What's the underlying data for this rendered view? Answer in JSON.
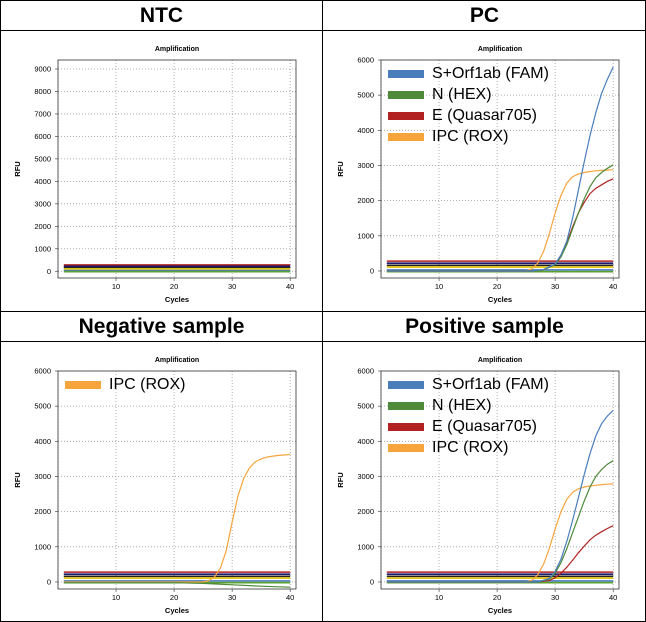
{
  "panels": [
    {
      "title": "NTC"
    },
    {
      "title": "PC"
    },
    {
      "title": "Negative sample"
    },
    {
      "title": "Positive sample"
    }
  ],
  "colors": {
    "fam": "#4a7ebb",
    "hex": "#4e8a3a",
    "q705": "#b22222",
    "rox": "#f5a53c",
    "baseline_black": "#222222",
    "baseline_navy": "#1a1a6e",
    "baseline_yellow": "#e0c000",
    "baseline_green": "#5aa02c",
    "grid": "#999999"
  },
  "chart_data": [
    {
      "type": "line",
      "title": "Amplification",
      "xlabel": "Cycles",
      "ylabel": "RFU",
      "xlim": [
        0,
        41
      ],
      "ylim": [
        -300,
        9400
      ],
      "xticks": [
        0,
        10,
        20,
        30,
        40
      ],
      "yticks": [
        0,
        1000,
        2000,
        3000,
        4000,
        5000,
        6000,
        7000,
        8000,
        9000
      ],
      "grid": true,
      "legend": [],
      "baselines": [
        {
          "color": "q705",
          "value": 280
        },
        {
          "color": "baseline_navy",
          "value": 220
        },
        {
          "color": "baseline_black",
          "value": 160
        },
        {
          "color": "baseline_yellow",
          "value": 110
        },
        {
          "color": "fam",
          "value": 30
        },
        {
          "color": "baseline_green",
          "value": -20
        }
      ],
      "series": []
    },
    {
      "type": "line",
      "title": "Amplification",
      "xlabel": "Cycles",
      "ylabel": "RFU",
      "xlim": [
        0,
        41
      ],
      "ylim": [
        -200,
        6000
      ],
      "xticks": [
        0,
        10,
        20,
        30,
        40
      ],
      "yticks": [
        0,
        1000,
        2000,
        3000,
        4000,
        5000,
        6000
      ],
      "grid": true,
      "legend": [
        {
          "name": "S+Orf1ab (FAM)",
          "color": "fam"
        },
        {
          "name": "N (HEX)",
          "color": "hex"
        },
        {
          "name": "E (Quasar705)",
          "color": "q705"
        },
        {
          "name": "IPC (ROX)",
          "color": "rox"
        }
      ],
      "baselines": [
        {
          "color": "q705",
          "value": 280
        },
        {
          "color": "baseline_navy",
          "value": 220
        },
        {
          "color": "baseline_black",
          "value": 160
        },
        {
          "color": "baseline_yellow",
          "value": 110
        },
        {
          "color": "fam",
          "value": 30
        },
        {
          "color": "baseline_green",
          "value": -20
        }
      ],
      "series": [
        {
          "color": "rox",
          "x": [
            25,
            26,
            27,
            28,
            29,
            30,
            31,
            32,
            33,
            34,
            35,
            36,
            37,
            38,
            39,
            40
          ],
          "y": [
            0,
            60,
            220,
            550,
            1050,
            1650,
            2150,
            2500,
            2680,
            2760,
            2800,
            2830,
            2850,
            2860,
            2870,
            2880
          ]
        },
        {
          "color": "q705",
          "x": [
            26,
            28,
            30,
            31,
            32,
            33,
            34,
            35,
            36,
            37,
            38,
            39,
            40
          ],
          "y": [
            0,
            30,
            200,
            450,
            800,
            1250,
            1650,
            1950,
            2200,
            2350,
            2450,
            2550,
            2620
          ]
        },
        {
          "color": "hex",
          "x": [
            26,
            28,
            30,
            31,
            32,
            33,
            34,
            35,
            36,
            37,
            38,
            39,
            40
          ],
          "y": [
            0,
            30,
            180,
            400,
            750,
            1200,
            1650,
            2050,
            2400,
            2650,
            2800,
            2920,
            3020
          ]
        },
        {
          "color": "fam",
          "x": [
            26,
            28,
            30,
            31,
            32,
            33,
            34,
            35,
            36,
            37,
            38,
            39,
            40
          ],
          "y": [
            0,
            40,
            200,
            450,
            850,
            1500,
            2300,
            3100,
            3850,
            4500,
            5050,
            5450,
            5800
          ]
        }
      ]
    },
    {
      "type": "line",
      "title": "Amplification",
      "xlabel": "Cycles",
      "ylabel": "RFU",
      "xlim": [
        0,
        41
      ],
      "ylim": [
        -200,
        6000
      ],
      "xticks": [
        0,
        10,
        20,
        30,
        40
      ],
      "yticks": [
        0,
        1000,
        2000,
        3000,
        4000,
        5000,
        6000
      ],
      "grid": true,
      "legend": [
        {
          "name": "IPC (ROX)",
          "color": "rox"
        }
      ],
      "baselines": [
        {
          "color": "q705",
          "value": 280
        },
        {
          "color": "baseline_navy",
          "value": 220
        },
        {
          "color": "baseline_black",
          "value": 160
        },
        {
          "color": "baseline_yellow",
          "value": 110
        },
        {
          "color": "fam",
          "value": 30
        },
        {
          "color": "baseline_green",
          "value": -20
        }
      ],
      "series": [
        {
          "color": "rox",
          "x": [
            25,
            26,
            27,
            28,
            29,
            30,
            31,
            32,
            33,
            34,
            35,
            36,
            37,
            38,
            39,
            40
          ],
          "y": [
            0,
            40,
            150,
            400,
            900,
            1700,
            2450,
            2950,
            3250,
            3420,
            3500,
            3550,
            3580,
            3600,
            3610,
            3630
          ]
        },
        {
          "color": "hex",
          "x": [
            20,
            25,
            30,
            35,
            40
          ],
          "y": [
            -20,
            -40,
            -80,
            -120,
            -150
          ]
        }
      ]
    },
    {
      "type": "line",
      "title": "Amplification",
      "xlabel": "Cycles",
      "ylabel": "RFU",
      "xlim": [
        0,
        41
      ],
      "ylim": [
        -200,
        6000
      ],
      "xticks": [
        0,
        10,
        20,
        30,
        40
      ],
      "yticks": [
        0,
        1000,
        2000,
        3000,
        4000,
        5000,
        6000
      ],
      "grid": true,
      "legend": [
        {
          "name": "S+Orf1ab (FAM)",
          "color": "fam"
        },
        {
          "name": "N (HEX)",
          "color": "hex"
        },
        {
          "name": "E (Quasar705)",
          "color": "q705"
        },
        {
          "name": "IPC (ROX)",
          "color": "rox"
        }
      ],
      "baselines": [
        {
          "color": "q705",
          "value": 280
        },
        {
          "color": "baseline_navy",
          "value": 220
        },
        {
          "color": "baseline_black",
          "value": 160
        },
        {
          "color": "baseline_yellow",
          "value": 110
        },
        {
          "color": "fam",
          "value": 30
        },
        {
          "color": "baseline_green",
          "value": -20
        }
      ],
      "series": [
        {
          "color": "rox",
          "x": [
            25,
            26,
            27,
            28,
            29,
            30,
            31,
            32,
            33,
            34,
            35,
            36,
            37,
            38,
            39,
            40
          ],
          "y": [
            0,
            50,
            200,
            500,
            950,
            1500,
            2000,
            2350,
            2550,
            2650,
            2700,
            2730,
            2750,
            2770,
            2780,
            2790
          ]
        },
        {
          "color": "q705",
          "x": [
            27,
            29,
            30,
            31,
            32,
            33,
            34,
            35,
            36,
            37,
            38,
            39,
            40
          ],
          "y": [
            0,
            40,
            120,
            250,
            420,
            620,
            830,
            1020,
            1200,
            1330,
            1430,
            1520,
            1600
          ]
        },
        {
          "color": "hex",
          "x": [
            27,
            29,
            30,
            31,
            32,
            33,
            34,
            35,
            36,
            37,
            38,
            39,
            40
          ],
          "y": [
            0,
            80,
            250,
            550,
            950,
            1400,
            1850,
            2300,
            2700,
            3000,
            3200,
            3350,
            3450
          ]
        },
        {
          "color": "fam",
          "x": [
            27,
            29,
            30,
            31,
            32,
            33,
            34,
            35,
            36,
            37,
            38,
            39,
            40
          ],
          "y": [
            0,
            100,
            300,
            650,
            1150,
            1750,
            2400,
            3050,
            3650,
            4150,
            4500,
            4720,
            4880
          ]
        }
      ]
    }
  ]
}
